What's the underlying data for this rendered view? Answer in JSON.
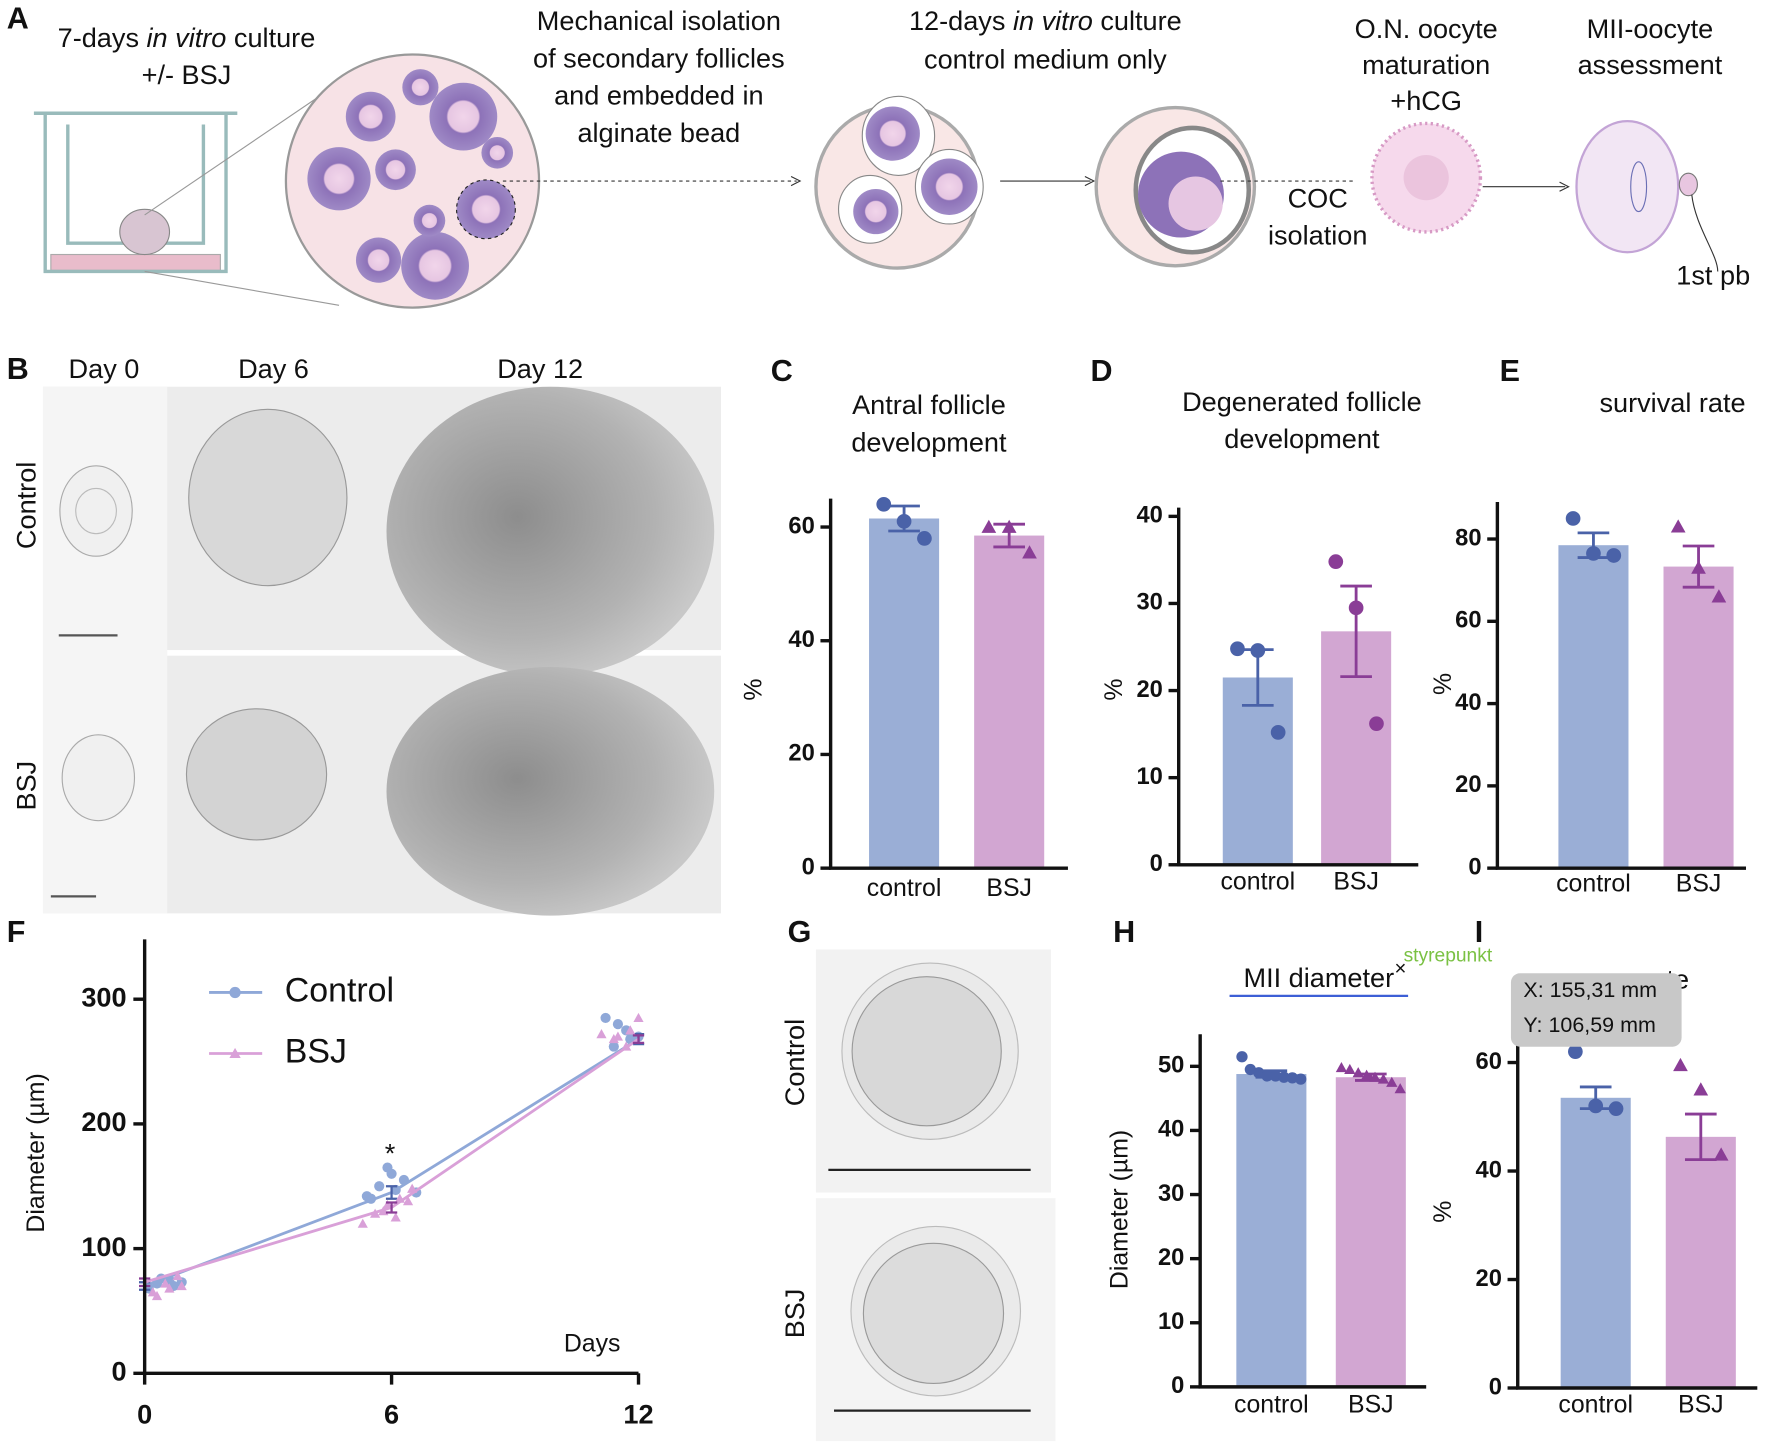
{
  "panel_a": {
    "panel": "A",
    "culture": {
      "before": "7-days ",
      "italic": "in vitro",
      "after": " culture"
    },
    "treatment": "+/- BSJ",
    "isolation": [
      "Mechanical isolation",
      "of secondary follicles",
      "and embedded in",
      "alginate bead"
    ],
    "culture12": {
      "before": "12-days ",
      "italic": "in vitro",
      "after": " culture"
    },
    "medium": "control medium only",
    "maturation": [
      "O.N. oocyte",
      "maturation",
      "+hCG"
    ],
    "assessment": [
      "MII-oocyte",
      "assessment"
    ],
    "coc": [
      "COC",
      "isolation"
    ],
    "pb": "1st pb"
  },
  "panel_b": {
    "panel": "B",
    "days": [
      "Day 0",
      "Day 6",
      "Day 12"
    ],
    "rows": [
      "Control",
      "BSJ"
    ]
  },
  "panel_g": {
    "panel": "G",
    "rows": [
      "Control",
      "BSJ"
    ]
  },
  "overlay": {
    "control_point": "styrepunkt",
    "close": "×",
    "tooltip": [
      "X: 155,31 mm",
      "Y: 106,59 mm"
    ]
  },
  "chart_data": [
    {
      "type": "bar",
      "panel": "C",
      "title": [
        "Antral follicle",
        "development"
      ],
      "ylabel": "%",
      "categories": [
        "control",
        "BSJ"
      ],
      "values": [
        61.5,
        58.5
      ],
      "errors": [
        2.2,
        2
      ],
      "points": [
        [
          64,
          61,
          58
        ],
        [
          60,
          60,
          55.5
        ]
      ],
      "colors": [
        "#9aaed6",
        "#d2a6d2"
      ],
      "point_colors": [
        "#4a62a8",
        "#8a3d96"
      ],
      "markers": [
        "circle",
        "triangle"
      ],
      "ylim": [
        0,
        65
      ],
      "yticks": [
        0,
        20,
        40,
        60
      ]
    },
    {
      "type": "bar",
      "panel": "D",
      "title": [
        "Degenerated follicle",
        "development"
      ],
      "ylabel": "%",
      "categories": [
        "control",
        "BSJ"
      ],
      "values": [
        21.5,
        26.8
      ],
      "errors": [
        3.2,
        5.2
      ],
      "points": [
        [
          24.8,
          24.6,
          15.2
        ],
        [
          34.8,
          29.5,
          16.2
        ]
      ],
      "colors": [
        "#9aaed6",
        "#d2a6d2"
      ],
      "point_colors": [
        "#4a62a8",
        "#8a3d96"
      ],
      "markers": [
        "circle",
        "circle"
      ],
      "ylim": [
        0,
        41
      ],
      "yticks": [
        0,
        10,
        20,
        30,
        40
      ]
    },
    {
      "type": "bar",
      "panel": "E",
      "title": [
        "survival rate"
      ],
      "ylabel": "%",
      "categories": [
        "control",
        "BSJ"
      ],
      "values": [
        78.5,
        73.3
      ],
      "errors": [
        3,
        5
      ],
      "points": [
        [
          85,
          76.5,
          76
        ],
        [
          83,
          73,
          66
        ]
      ],
      "colors": [
        "#9aaed6",
        "#d2a6d2"
      ],
      "point_colors": [
        "#4a62a8",
        "#8a3d96"
      ],
      "markers": [
        "circle",
        "triangle"
      ],
      "ylim": [
        0,
        89
      ],
      "yticks": [
        0,
        20,
        40,
        60,
        80
      ]
    },
    {
      "type": "line",
      "panel": "F",
      "ylabel": "Diameter (µm)",
      "xlabel": "Days",
      "annotation": "*",
      "x": [
        0,
        6,
        12
      ],
      "series": [
        {
          "name": "Control",
          "color": "#8fa8d8",
          "values": [
            70,
            145,
            268
          ],
          "errors": [
            3,
            5,
            4
          ],
          "points_x": [
            0.1,
            0.3,
            0.6,
            0.9,
            0.4,
            0.7,
            5.4,
            5.7,
            6.0,
            6.3,
            5.5,
            6.1,
            6.6,
            5.9,
            11.2,
            11.5,
            11.8,
            11.4,
            11.7,
            12.0
          ],
          "points_y": [
            68,
            72,
            75,
            73,
            76,
            70,
            142,
            150,
            160,
            155,
            140,
            147,
            145,
            165,
            285,
            280,
            268,
            262,
            275,
            270
          ]
        },
        {
          "name": "BSJ",
          "color": "#d9a0d8",
          "values": [
            73,
            133,
            268
          ],
          "errors": [
            3,
            4,
            3
          ],
          "points_x": [
            0.2,
            0.5,
            0.8,
            0.3,
            0.6,
            0.9,
            5.3,
            5.6,
            5.9,
            6.2,
            6.5,
            5.8,
            6.1,
            6.4,
            11.1,
            11.4,
            11.7,
            12.0,
            11.5,
            11.8
          ],
          "points_y": [
            65,
            72,
            78,
            62,
            68,
            70,
            120,
            128,
            135,
            140,
            148,
            130,
            125,
            138,
            272,
            268,
            262,
            285,
            270,
            275
          ]
        }
      ],
      "xlim": [
        0,
        12
      ],
      "ylim": [
        0,
        348
      ],
      "xticks": [
        0,
        6,
        12
      ],
      "yticks": [
        0,
        100,
        200,
        300
      ]
    },
    {
      "type": "bar",
      "panel": "H",
      "title": [
        "MII diameter"
      ],
      "ylabel": "Diameter (µm)",
      "categories": [
        "control",
        "BSJ"
      ],
      "values": [
        48.8,
        48.3
      ],
      "errors": [
        0.5,
        0.5
      ],
      "points": [
        [
          51.5,
          49.5,
          49,
          48.5,
          48.5,
          48.3,
          48.2,
          48
        ],
        [
          49.8,
          49.5,
          49,
          48.6,
          48.3,
          48,
          47.5,
          46.5
        ]
      ],
      "colors": [
        "#9aaed6",
        "#d2a6d2"
      ],
      "point_colors": [
        "#4a62a8",
        "#8a3d96"
      ],
      "markers": [
        "circle",
        "triangle"
      ],
      "ylim": [
        0,
        55
      ],
      "yticks": [
        0,
        10,
        20,
        30,
        40,
        50
      ]
    },
    {
      "type": "bar",
      "panel": "I",
      "title": [
        "ate"
      ],
      "ylabel": "%",
      "categories": [
        "control",
        "BSJ"
      ],
      "values": [
        53.5,
        46.3
      ],
      "errors": [
        2,
        4.2
      ],
      "points": [
        [
          62,
          52,
          51.5
        ],
        [
          59.5,
          55,
          43
        ]
      ],
      "colors": [
        "#9aaed6",
        "#d2a6d2"
      ],
      "point_colors": [
        "#4a62a8",
        "#8a3d96"
      ],
      "markers": [
        "circle",
        "triangle"
      ],
      "ylim": [
        0,
        65
      ],
      "yticks": [
        0,
        20,
        40,
        60
      ]
    }
  ]
}
